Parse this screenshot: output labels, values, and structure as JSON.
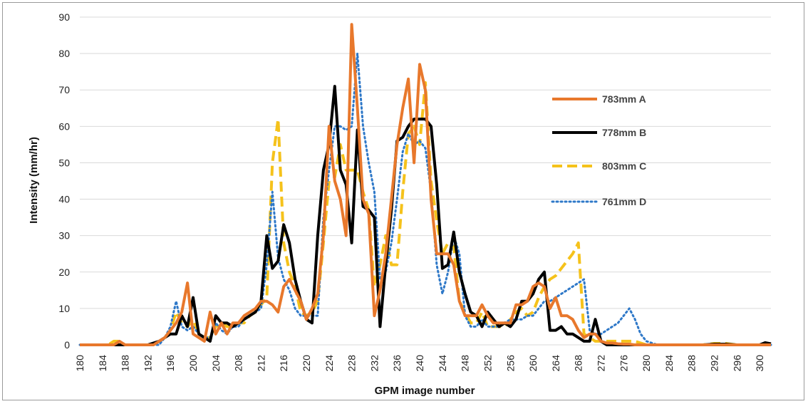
{
  "chart_data": {
    "type": "line",
    "xlabel": "GPM image number",
    "ylabel": "Intensity (mm/hr)",
    "title": "",
    "xlim": [
      180,
      302
    ],
    "ylim": [
      0,
      90
    ],
    "x_ticks": [
      180,
      184,
      188,
      192,
      196,
      200,
      204,
      208,
      212,
      216,
      220,
      224,
      228,
      232,
      236,
      240,
      244,
      248,
      252,
      256,
      260,
      264,
      268,
      272,
      276,
      280,
      284,
      288,
      292,
      296,
      300
    ],
    "y_ticks": [
      0,
      10,
      20,
      30,
      40,
      50,
      60,
      70,
      80,
      90
    ],
    "grid": "horizontal",
    "legend_position": "right",
    "series": [
      {
        "name": "783mm  A",
        "color": "#E8782C",
        "dash": "solid",
        "x": [
          180,
          186,
          187,
          188,
          190,
          193,
          194,
          195,
          196,
          197,
          198,
          199,
          200,
          201,
          202,
          203,
          204,
          205,
          206,
          207,
          208,
          209,
          210,
          211,
          212,
          213,
          214,
          215,
          216,
          217,
          218,
          219,
          220,
          221,
          222,
          223,
          224,
          225,
          226,
          227,
          228,
          229,
          230,
          231,
          232,
          233,
          234,
          235,
          236,
          237,
          238,
          239,
          240,
          241,
          242,
          243,
          244,
          245,
          246,
          247,
          248,
          249,
          250,
          251,
          252,
          253,
          254,
          255,
          256,
          257,
          258,
          259,
          260,
          261,
          262,
          263,
          264,
          265,
          266,
          267,
          268,
          269,
          270,
          271,
          272,
          273,
          274,
          275,
          276,
          277,
          278,
          279,
          280,
          281,
          282,
          284,
          290,
          300,
          302
        ],
        "y": [
          0,
          0,
          1,
          0,
          0,
          0,
          1,
          2,
          4,
          6,
          9,
          17,
          3,
          2,
          1,
          9,
          3,
          6,
          3,
          6,
          6,
          8,
          9,
          10,
          12,
          12,
          11,
          9,
          16,
          18,
          15,
          12,
          7,
          10,
          14,
          30,
          60,
          45,
          40,
          30,
          88,
          65,
          40,
          36,
          8,
          15,
          25,
          40,
          55,
          65,
          73,
          50,
          77,
          70,
          40,
          25,
          25,
          25,
          22,
          12,
          8,
          8,
          8,
          11,
          8,
          6,
          6,
          6,
          6,
          11,
          11,
          12,
          16,
          17,
          16,
          10,
          13,
          8,
          8,
          7,
          4,
          2,
          3,
          3,
          1,
          0.5,
          0.5,
          0.3,
          0.2,
          0.2,
          0,
          0,
          0,
          0,
          0,
          0,
          0,
          0,
          0
        ]
      },
      {
        "name": "778mm  B",
        "color": "#000000",
        "dash": "solid",
        "x": [
          180,
          192,
          194,
          195,
          196,
          197,
          198,
          199,
          200,
          201,
          202,
          203,
          204,
          205,
          206,
          207,
          208,
          209,
          210,
          211,
          212,
          213,
          214,
          215,
          216,
          217,
          218,
          219,
          220,
          221,
          222,
          223,
          224,
          225,
          226,
          227,
          228,
          229,
          230,
          231,
          232,
          233,
          234,
          235,
          236,
          237,
          238,
          239,
          240,
          241,
          242,
          243,
          244,
          245,
          246,
          247,
          248,
          249,
          250,
          251,
          252,
          253,
          254,
          255,
          256,
          257,
          258,
          259,
          260,
          261,
          262,
          263,
          264,
          265,
          266,
          267,
          268,
          269,
          270,
          271,
          272,
          273,
          274,
          276,
          278,
          280,
          282,
          284,
          290,
          292,
          294,
          296,
          298,
          300,
          301,
          302
        ],
        "y": [
          0,
          0,
          1,
          2,
          3,
          3,
          8,
          5,
          13,
          3,
          2,
          1,
          8,
          6,
          6,
          5,
          6,
          7,
          8,
          9,
          12,
          30,
          21,
          23,
          33,
          28,
          18,
          12,
          7,
          6,
          30,
          48,
          55,
          71,
          48,
          44,
          28,
          59,
          38,
          37,
          35,
          5,
          22,
          37,
          56,
          57,
          60,
          62,
          62,
          62,
          60,
          44,
          21,
          22,
          31,
          20,
          14,
          9,
          8,
          5,
          9,
          7,
          5,
          6,
          5,
          7,
          12,
          12,
          14,
          18,
          20,
          4,
          4,
          5,
          3,
          3,
          2,
          1,
          1,
          7,
          1,
          0,
          0,
          0,
          0,
          0,
          0,
          0,
          0,
          0.2,
          0.2,
          0,
          0,
          0,
          0.6,
          0.3
        ]
      },
      {
        "name": "803mm  C",
        "color": "#F5C21B",
        "dash": "dash",
        "x": [
          180,
          185,
          186,
          187,
          188,
          190,
          193,
          195,
          196,
          197,
          198,
          199,
          200,
          201,
          202,
          203,
          204,
          205,
          206,
          207,
          208,
          209,
          210,
          211,
          212,
          213,
          214,
          215,
          216,
          217,
          218,
          219,
          220,
          221,
          222,
          223,
          224,
          225,
          226,
          227,
          228,
          229,
          230,
          231,
          232,
          233,
          234,
          235,
          236,
          237,
          238,
          239,
          240,
          241,
          242,
          243,
          244,
          245,
          246,
          247,
          248,
          249,
          250,
          251,
          252,
          253,
          254,
          255,
          256,
          257,
          258,
          259,
          260,
          261,
          262,
          263,
          264,
          265,
          266,
          267,
          268,
          269,
          270,
          271,
          272,
          274,
          276,
          278,
          280,
          282,
          284,
          290,
          292,
          294,
          296,
          300,
          302
        ],
        "y": [
          0,
          0,
          1,
          1,
          0,
          0,
          0,
          2,
          4,
          9,
          6,
          5,
          7,
          3,
          2,
          2,
          5,
          6,
          5,
          5,
          6,
          6,
          8,
          9,
          11,
          13,
          50,
          62,
          28,
          20,
          16,
          9,
          8,
          9,
          12,
          28,
          45,
          46,
          55,
          48,
          48,
          48,
          42,
          37,
          16,
          22,
          30,
          22,
          22,
          42,
          58,
          60,
          55,
          72,
          45,
          34,
          25,
          28,
          27,
          12,
          9,
          6,
          6,
          9,
          5,
          5,
          5,
          5,
          7,
          9,
          10,
          8,
          9,
          13,
          16,
          18,
          19,
          21,
          23,
          25,
          28,
          3,
          2,
          1,
          1,
          1,
          1,
          1,
          0,
          0,
          0,
          0,
          0.4,
          0.4,
          0,
          0,
          0
        ]
      },
      {
        "name": "761mm  D",
        "color": "#2E78C8",
        "dash": "dot",
        "x": [
          180,
          194,
          195,
          196,
          197,
          198,
          199,
          200,
          201,
          202,
          203,
          204,
          205,
          206,
          207,
          208,
          209,
          210,
          211,
          212,
          213,
          214,
          215,
          216,
          217,
          218,
          219,
          220,
          221,
          222,
          223,
          224,
          225,
          226,
          227,
          228,
          229,
          230,
          231,
          232,
          233,
          234,
          235,
          236,
          237,
          238,
          239,
          240,
          241,
          242,
          243,
          244,
          245,
          246,
          247,
          248,
          249,
          250,
          251,
          252,
          253,
          254,
          255,
          256,
          257,
          258,
          259,
          260,
          261,
          262,
          263,
          264,
          265,
          266,
          267,
          268,
          269,
          270,
          271,
          272,
          273,
          274,
          275,
          276,
          277,
          278,
          279,
          280,
          282,
          284,
          290,
          302
        ],
        "y": [
          0,
          0,
          2,
          5,
          12,
          5,
          4,
          5,
          3,
          2,
          2,
          6,
          4,
          3,
          5,
          5,
          7,
          8,
          9,
          10,
          22,
          42,
          24,
          18,
          15,
          10,
          8,
          8,
          8,
          8,
          35,
          48,
          60,
          60,
          59,
          60,
          80,
          60,
          50,
          42,
          18,
          20,
          28,
          40,
          53,
          58,
          55,
          56,
          54,
          42,
          22,
          14,
          20,
          30,
          25,
          8,
          5,
          5,
          7,
          5,
          5,
          5,
          6,
          7,
          7,
          7,
          8,
          8,
          10,
          12,
          12,
          13,
          14,
          15,
          16,
          17,
          18,
          4,
          3,
          3,
          4,
          5,
          6,
          8,
          10,
          7,
          3,
          1,
          0,
          0,
          0,
          0
        ]
      }
    ]
  }
}
